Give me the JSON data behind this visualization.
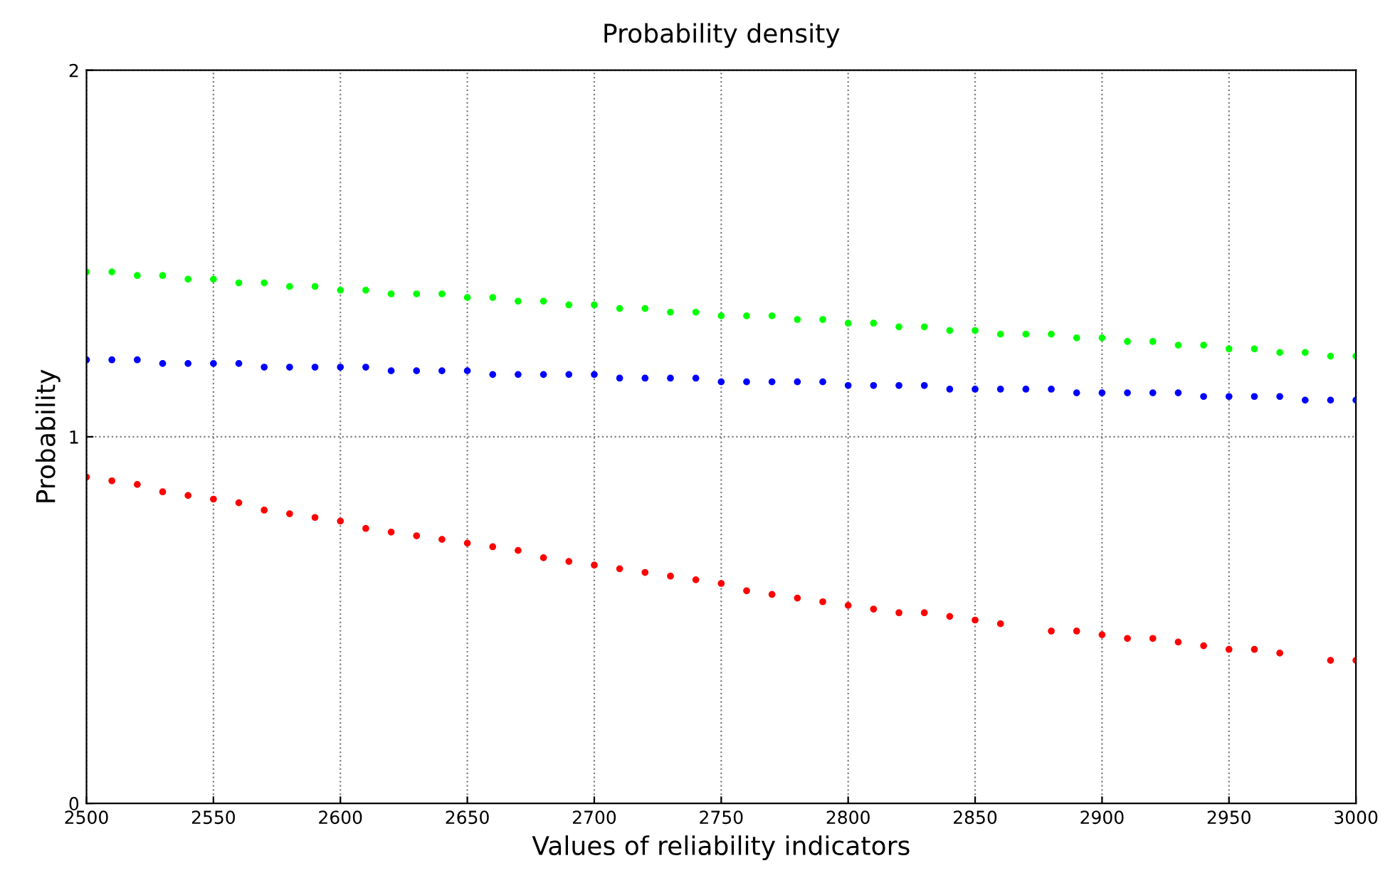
{
  "chart_data": {
    "type": "scatter",
    "title": "Probability density",
    "xlabel": "Values of reliability indicators",
    "ylabel": "Probability",
    "x": [
      2500,
      2510,
      2520,
      2530,
      2540,
      2550,
      2560,
      2570,
      2580,
      2590,
      2600,
      2610,
      2620,
      2630,
      2640,
      2650,
      2660,
      2670,
      2680,
      2690,
      2700,
      2710,
      2720,
      2730,
      2740,
      2750,
      2760,
      2770,
      2780,
      2790,
      2800,
      2810,
      2820,
      2830,
      2840,
      2850,
      2860,
      2870,
      2880,
      2890,
      2900,
      2910,
      2920,
      2930,
      2940,
      2950,
      2960,
      2970,
      2980,
      2990,
      3000
    ],
    "series": [
      {
        "color": "#00ff00",
        "values": [
          1.45,
          1.45,
          1.44,
          1.44,
          1.43,
          1.43,
          1.42,
          1.42,
          1.41,
          1.41,
          1.4,
          1.4,
          1.39,
          1.39,
          1.39,
          1.38,
          1.38,
          1.37,
          1.37,
          1.36,
          1.36,
          1.35,
          1.35,
          1.34,
          1.34,
          1.33,
          1.33,
          1.33,
          1.32,
          1.32,
          1.31,
          1.31,
          1.3,
          1.3,
          1.29,
          1.29,
          1.28,
          1.28,
          1.28,
          1.27,
          1.27,
          1.26,
          1.26,
          1.25,
          1.25,
          1.24,
          1.24,
          1.23,
          1.23,
          1.22,
          1.22
        ]
      },
      {
        "color": "#0000ff",
        "values": [
          1.21,
          1.21,
          1.21,
          1.2,
          1.2,
          1.2,
          1.2,
          1.19,
          1.19,
          1.19,
          1.19,
          1.19,
          1.18,
          1.18,
          1.18,
          1.18,
          1.17,
          1.17,
          1.17,
          1.17,
          1.17,
          1.16,
          1.16,
          1.16,
          1.16,
          1.15,
          1.15,
          1.15,
          1.15,
          1.15,
          1.14,
          1.14,
          1.14,
          1.14,
          1.13,
          1.13,
          1.13,
          1.13,
          1.13,
          1.12,
          1.12,
          1.12,
          1.12,
          1.12,
          1.11,
          1.11,
          1.11,
          1.11,
          1.1,
          1.1,
          1.1
        ]
      },
      {
        "color": "#ff0000",
        "values": [
          0.89,
          0.88,
          0.87,
          0.85,
          0.84,
          0.83,
          0.82,
          0.8,
          0.79,
          0.78,
          0.77,
          0.75,
          0.74,
          0.73,
          0.72,
          0.71,
          0.7,
          0.69,
          0.67,
          0.66,
          0.65,
          0.64,
          0.63,
          0.62,
          0.61,
          0.6,
          0.58,
          0.57,
          0.56,
          0.55,
          0.54,
          0.53,
          0.52,
          0.52,
          0.51,
          0.5,
          0.49,
          null,
          0.47,
          0.47,
          0.46,
          0.45,
          0.45,
          0.44,
          0.43,
          0.42,
          0.42,
          0.41,
          null,
          0.39,
          0.39
        ]
      }
    ],
    "xlim": [
      2500,
      3000
    ],
    "ylim": [
      0,
      2
    ],
    "xticks": [
      2500,
      2550,
      2600,
      2650,
      2700,
      2750,
      2800,
      2850,
      2900,
      2950,
      3000
    ],
    "yticks": [
      0,
      1,
      2
    ],
    "grid": true,
    "marker": "circle",
    "legend": false
  }
}
